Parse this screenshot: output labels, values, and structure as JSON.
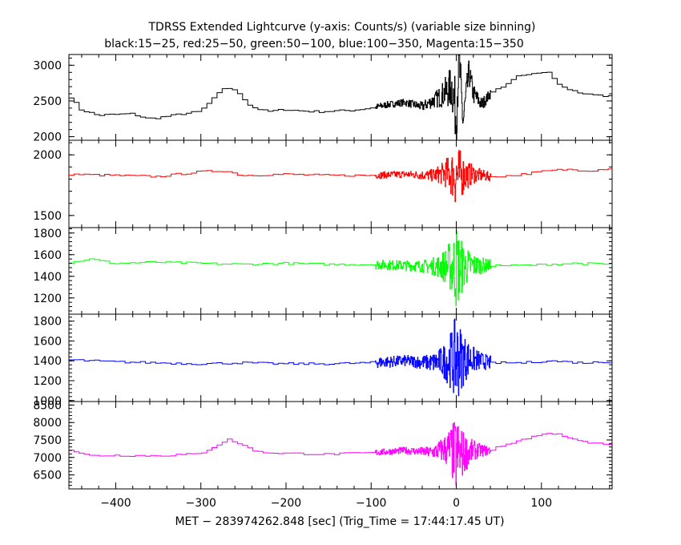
{
  "title": "TDRSS Extended Lightcurve (y-axis: Counts/s) (variable size binning)",
  "subtitle": "black:15−25, red:25−50, green:50−100, blue:100−350, Magenta:15−350",
  "xlabel": "MET − 283974262.848 [sec] (Trig_Time = 17:44:17.45 UT)",
  "chart_data": {
    "type": "line",
    "xlim": [
      -455,
      183
    ],
    "x_ticks": [
      -400,
      -300,
      -200,
      -100,
      0,
      100
    ],
    "x_tick_labels": [
      "−400",
      "−300",
      "−200",
      "−100",
      "0",
      "100"
    ],
    "panels": [
      {
        "name": "15-25 keV",
        "color": "#000000",
        "ylim": [
          1950,
          3150
        ],
        "y_ticks": [
          2000,
          2500,
          3000
        ],
        "y_tick_labels": [
          "2000",
          "2500",
          "3000"
        ],
        "points": [
          [
            -455,
            2600
          ],
          [
            -440,
            2380
          ],
          [
            -420,
            2300
          ],
          [
            -400,
            2310
          ],
          [
            -380,
            2320
          ],
          [
            -360,
            2250
          ],
          [
            -340,
            2280
          ],
          [
            -320,
            2320
          ],
          [
            -300,
            2350
          ],
          [
            -285,
            2520
          ],
          [
            -270,
            2700
          ],
          [
            -255,
            2620
          ],
          [
            -240,
            2420
          ],
          [
            -220,
            2350
          ],
          [
            -200,
            2380
          ],
          [
            -180,
            2360
          ],
          [
            -160,
            2350
          ],
          [
            -140,
            2360
          ],
          [
            -120,
            2370
          ],
          [
            -100,
            2400
          ],
          [
            -80,
            2450
          ],
          [
            -60,
            2480
          ],
          [
            -40,
            2420
          ],
          [
            -20,
            2550
          ],
          [
            -5,
            2700
          ],
          [
            0,
            2300
          ],
          [
            3,
            3100
          ],
          [
            8,
            2200
          ],
          [
            15,
            2900
          ],
          [
            20,
            2600
          ],
          [
            30,
            2450
          ],
          [
            40,
            2600
          ],
          [
            55,
            2700
          ],
          [
            75,
            2850
          ],
          [
            95,
            2880
          ],
          [
            110,
            2900
          ],
          [
            125,
            2700
          ],
          [
            145,
            2620
          ],
          [
            165,
            2580
          ],
          [
            183,
            2560
          ]
        ],
        "band": {
          "start": -100,
          "end": 40,
          "peak_time": 0,
          "base": 45,
          "peak": 420,
          "width": 14
        }
      },
      {
        "name": "25-50 keV",
        "color": "#ff0000",
        "ylim": [
          1400,
          2120
        ],
        "y_ticks": [
          1500,
          2000
        ],
        "y_tick_labels": [
          "1500",
          "2000"
        ],
        "points": [
          [
            -455,
            1840
          ],
          [
            -400,
            1830
          ],
          [
            -350,
            1820
          ],
          [
            -300,
            1860
          ],
          [
            -270,
            1870
          ],
          [
            -250,
            1830
          ],
          [
            -200,
            1840
          ],
          [
            -150,
            1830
          ],
          [
            -100,
            1830
          ],
          [
            -60,
            1840
          ],
          [
            -30,
            1830
          ],
          [
            -10,
            1850
          ],
          [
            0,
            1830
          ],
          [
            20,
            1840
          ],
          [
            40,
            1820
          ],
          [
            70,
            1830
          ],
          [
            100,
            1860
          ],
          [
            130,
            1880
          ],
          [
            160,
            1870
          ],
          [
            183,
            1890
          ]
        ],
        "band": {
          "start": -100,
          "end": 40,
          "peak_time": 0,
          "base": 28,
          "peak": 260,
          "width": 12
        }
      },
      {
        "name": "50-100 keV",
        "color": "#00ff00",
        "ylim": [
          1050,
          1850
        ],
        "y_ticks": [
          1200,
          1400,
          1600,
          1800
        ],
        "y_tick_labels": [
          "1200",
          "1400",
          "1600",
          "1800"
        ],
        "points": [
          [
            -455,
            1520
          ],
          [
            -430,
            1560
          ],
          [
            -400,
            1520
          ],
          [
            -350,
            1530
          ],
          [
            -300,
            1520
          ],
          [
            -250,
            1510
          ],
          [
            -200,
            1520
          ],
          [
            -150,
            1510
          ],
          [
            -100,
            1510
          ],
          [
            -60,
            1500
          ],
          [
            -30,
            1490
          ],
          [
            -10,
            1500
          ],
          [
            0,
            1480
          ],
          [
            20,
            1500
          ],
          [
            50,
            1500
          ],
          [
            80,
            1500
          ],
          [
            110,
            1510
          ],
          [
            140,
            1520
          ],
          [
            183,
            1510
          ]
        ],
        "band": {
          "start": -100,
          "end": 40,
          "peak_time": 0,
          "base": 45,
          "peak": 360,
          "width": 12
        }
      },
      {
        "name": "100-350 keV",
        "color": "#0000ff",
        "ylim": [
          990,
          1870
        ],
        "y_ticks": [
          1000,
          1200,
          1400,
          1600,
          1800
        ],
        "y_tick_labels": [
          "1000",
          "1200",
          "1400",
          "1600",
          "1800"
        ],
        "points": [
          [
            -455,
            1410
          ],
          [
            -400,
            1390
          ],
          [
            -350,
            1380
          ],
          [
            -300,
            1370
          ],
          [
            -250,
            1380
          ],
          [
            -200,
            1370
          ],
          [
            -150,
            1370
          ],
          [
            -100,
            1380
          ],
          [
            -60,
            1400
          ],
          [
            -30,
            1380
          ],
          [
            -10,
            1400
          ],
          [
            0,
            1420
          ],
          [
            15,
            1420
          ],
          [
            40,
            1380
          ],
          [
            80,
            1380
          ],
          [
            110,
            1400
          ],
          [
            150,
            1380
          ],
          [
            183,
            1390
          ]
        ],
        "band": {
          "start": -100,
          "end": 40,
          "peak_time": 0,
          "base": 55,
          "peak": 420,
          "width": 12
        }
      },
      {
        "name": "15-350 keV",
        "color": "#ff00ff",
        "ylim": [
          6100,
          8600
        ],
        "y_ticks": [
          6500,
          7000,
          7500,
          8000,
          8500
        ],
        "y_tick_labels": [
          "6500",
          "7000",
          "7500",
          "8000",
          "8500"
        ],
        "points": [
          [
            -455,
            7250
          ],
          [
            -430,
            7050
          ],
          [
            -400,
            7060
          ],
          [
            -350,
            7050
          ],
          [
            -300,
            7100
          ],
          [
            -280,
            7350
          ],
          [
            -265,
            7520
          ],
          [
            -250,
            7350
          ],
          [
            -230,
            7150
          ],
          [
            -200,
            7120
          ],
          [
            -150,
            7090
          ],
          [
            -100,
            7130
          ],
          [
            -60,
            7200
          ],
          [
            -30,
            7150
          ],
          [
            -10,
            7250
          ],
          [
            0,
            7050
          ],
          [
            20,
            7200
          ],
          [
            40,
            7200
          ],
          [
            70,
            7450
          ],
          [
            100,
            7650
          ],
          [
            120,
            7700
          ],
          [
            140,
            7500
          ],
          [
            160,
            7400
          ],
          [
            183,
            7380
          ]
        ],
        "band": {
          "start": -100,
          "end": 40,
          "peak_time": 0,
          "base": 90,
          "peak": 1100,
          "width": 12
        }
      }
    ]
  }
}
